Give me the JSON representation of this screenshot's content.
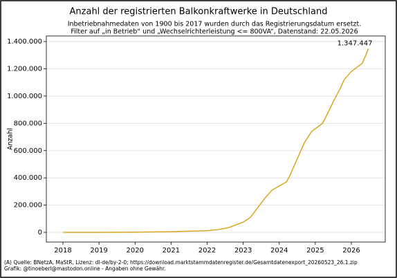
{
  "chart_data": {
    "type": "line",
    "title": "Anzahl der registrierten Balkonkraftwerke in Deutschland",
    "subtitle": [
      "Inbetriebnahmedaten von 1900 bis 2017 wurden durch das Registrierungsdatum ersetzt.",
      "Filter auf „in Betrieb“ und „Wechselrichterleistung <= 800VA“, Datenstand: 22.05.2026"
    ],
    "ylabel": "Anzahl",
    "footer": [
      "(A) Quelle: BNetzA, MaStR, Lizenz: dl-de/by-2-0; https://download.marktstammdatenregister.de/Gesamtdatenexport_20260523_26.1.zip",
      "Grafik: @tinoeberl@mastodon.online - Angaben ohne Gewähr."
    ],
    "x": [
      2018,
      2019,
      2020,
      2021,
      2021.5,
      2022,
      2022.3,
      2022.6,
      2022.8,
      2023.0,
      2023.2,
      2023.4,
      2023.6,
      2023.8,
      2024.0,
      2024.2,
      2024.3,
      2024.5,
      2024.7,
      2024.9,
      2025.1,
      2025.2,
      2025.3,
      2025.5,
      2025.7,
      2025.8,
      2026.0,
      2026.2,
      2026.3,
      2026.4,
      2026.47
    ],
    "series": [
      {
        "color": "#daa520",
        "values": [
          0,
          0,
          1000,
          5000,
          8000,
          12000,
          20000,
          35000,
          55000,
          75000,
          110000,
          180000,
          250000,
          310000,
          340000,
          370000,
          420000,
          540000,
          660000,
          740000,
          780000,
          800000,
          850000,
          960000,
          1060000,
          1120000,
          1180000,
          1220000,
          1240000,
          1300000,
          1347447
        ],
        "value_labels": [
          null,
          null,
          null,
          null,
          null,
          null,
          null,
          null,
          null,
          null,
          null,
          null,
          null,
          null,
          null,
          null,
          null,
          null,
          null,
          null,
          null,
          null,
          null,
          null,
          null,
          null,
          null,
          null,
          null,
          null,
          "1.347.447"
        ]
      }
    ],
    "xlim": [
      2017.54,
      2026.94
    ],
    "xticks": [
      2018,
      2019,
      2020,
      2021,
      2022,
      2023,
      2024,
      2025,
      2026
    ],
    "ylim": [
      -71000,
      1441000
    ],
    "yticks": [
      {
        "value": 0,
        "label": "0"
      },
      {
        "value": 200000,
        "label": "200.000"
      },
      {
        "value": 400000,
        "label": "400.000"
      },
      {
        "value": 600000,
        "label": "600.000"
      },
      {
        "value": 800000,
        "label": "800.000"
      },
      {
        "value": 1000000,
        "label": "1.000.000"
      },
      {
        "value": 1200000,
        "label": "1.200.000"
      },
      {
        "value": 1400000,
        "label": "1.400.000"
      }
    ],
    "grid": true
  }
}
